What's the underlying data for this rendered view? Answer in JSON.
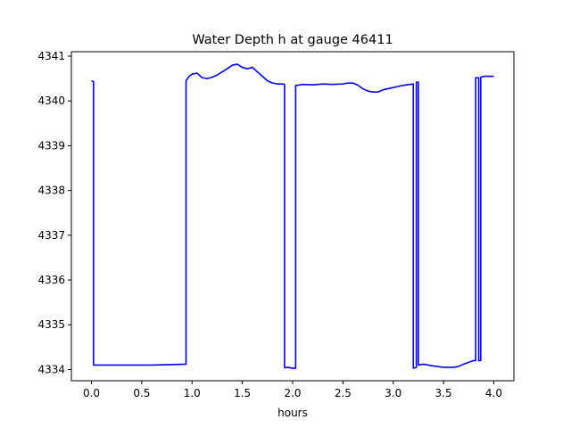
{
  "chart_data": {
    "type": "line",
    "title": "Water Depth h at gauge 46411",
    "xlabel": "hours",
    "ylabel": "",
    "xlim": [
      -0.2,
      4.2
    ],
    "ylim": [
      4333.75,
      4341.1
    ],
    "xticks": [
      0.0,
      0.5,
      1.0,
      1.5,
      2.0,
      2.5,
      3.0,
      3.5,
      4.0
    ],
    "xtick_labels": [
      "0.0",
      "0.5",
      "1.0",
      "1.5",
      "2.0",
      "2.5",
      "3.0",
      "3.5",
      "4.0"
    ],
    "yticks": [
      4334,
      4335,
      4336,
      4337,
      4338,
      4339,
      4340,
      4341
    ],
    "ytick_labels": [
      "4334",
      "4335",
      "4336",
      "4337",
      "4338",
      "4339",
      "4340",
      "4341"
    ],
    "grid": false,
    "series": [
      {
        "name": "",
        "color": "#0000ff",
        "x": [
          0.0,
          0.02,
          0.02,
          0.6,
          0.94,
          0.94,
          0.97,
          1.0,
          1.05,
          1.1,
          1.15,
          1.2,
          1.25,
          1.3,
          1.35,
          1.4,
          1.45,
          1.5,
          1.55,
          1.6,
          1.65,
          1.7,
          1.75,
          1.8,
          1.85,
          1.9,
          1.92,
          1.92,
          1.95,
          2.0,
          2.03,
          2.03,
          2.05,
          2.1,
          2.2,
          2.3,
          2.4,
          2.5,
          2.55,
          2.6,
          2.65,
          2.7,
          2.75,
          2.8,
          2.85,
          2.9,
          3.0,
          3.1,
          3.2,
          3.2,
          3.23,
          3.23,
          3.25,
          3.25,
          3.3,
          3.35,
          3.4,
          3.5,
          3.6,
          3.65,
          3.7,
          3.8,
          3.82,
          3.82,
          3.85,
          3.85,
          3.87,
          3.87,
          3.9,
          4.0
        ],
        "y": [
          4340.45,
          4340.43,
          4334.1,
          4334.1,
          4334.12,
          4340.45,
          4340.55,
          4340.6,
          4340.62,
          4340.52,
          4340.5,
          4340.53,
          4340.58,
          4340.65,
          4340.72,
          4340.8,
          4340.82,
          4340.75,
          4340.72,
          4340.75,
          4340.65,
          4340.55,
          4340.45,
          4340.4,
          4340.38,
          4340.38,
          4340.37,
          4334.04,
          4334.05,
          4334.03,
          4334.03,
          4340.35,
          4340.35,
          4340.37,
          4340.36,
          4340.38,
          4340.37,
          4340.38,
          4340.4,
          4340.4,
          4340.35,
          4340.27,
          4340.22,
          4340.2,
          4340.2,
          4340.25,
          4340.3,
          4340.35,
          4340.38,
          4334.03,
          4334.05,
          4340.42,
          4340.42,
          4334.1,
          4334.12,
          4334.1,
          4334.08,
          4334.05,
          4334.05,
          4334.07,
          4334.12,
          4334.2,
          4334.2,
          4340.52,
          4340.52,
          4334.2,
          4334.2,
          4340.53,
          4340.55,
          4340.55
        ]
      }
    ]
  }
}
